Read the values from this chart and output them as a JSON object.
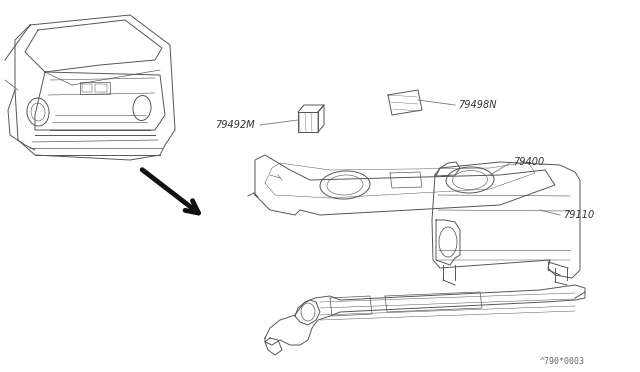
{
  "background_color": "#ffffff",
  "watermark": "^790*0003",
  "drawing_color": "#555555",
  "label_color": "#777777",
  "arrow_color": "#111111",
  "line_color": "#888888",
  "lw": 0.7
}
